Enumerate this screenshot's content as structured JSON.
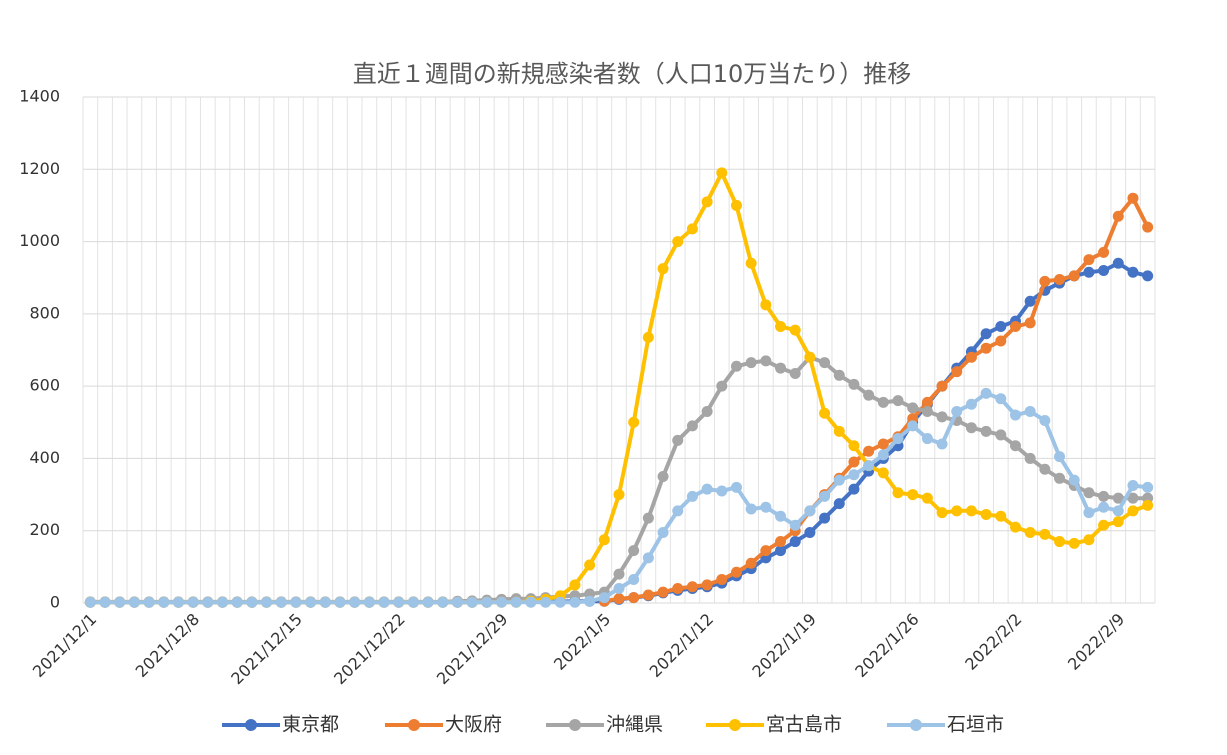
{
  "chart_data": {
    "type": "line",
    "title": "直近１週間の新規感染者数（人口10万当たり）推移",
    "categories": [
      "2021/12/1",
      null,
      null,
      null,
      null,
      null,
      null,
      "2021/12/8",
      null,
      null,
      null,
      null,
      null,
      null,
      "2021/12/15",
      null,
      null,
      null,
      null,
      null,
      null,
      "2021/12/22",
      null,
      null,
      null,
      null,
      null,
      null,
      "2021/12/29",
      null,
      null,
      null,
      null,
      null,
      null,
      "2022/1/5",
      null,
      null,
      null,
      null,
      null,
      null,
      "2022/1/12",
      null,
      null,
      null,
      null,
      null,
      null,
      "2022/1/19",
      null,
      null,
      null,
      null,
      null,
      null,
      "2022/1/26",
      null,
      null,
      null,
      null,
      null,
      null,
      "2022/2/2",
      null,
      null,
      null,
      null,
      null,
      null,
      "2022/2/9",
      null,
      null
    ],
    "series": [
      {
        "name": "東京都",
        "color": "#4472c4",
        "values": [
          2,
          2,
          2,
          2,
          2,
          2,
          2,
          2,
          2,
          2,
          2,
          2,
          2,
          2,
          2,
          2,
          2,
          2,
          2,
          2,
          2,
          2,
          2,
          2,
          2,
          2,
          2,
          2,
          3,
          3,
          4,
          4,
          4,
          5,
          5,
          5,
          10,
          15,
          20,
          28,
          35,
          40,
          45,
          55,
          75,
          95,
          125,
          145,
          170,
          195,
          235,
          275,
          315,
          365,
          400,
          435,
          500,
          550,
          600,
          650,
          695,
          745,
          765,
          780,
          835,
          865,
          885,
          905,
          915,
          920,
          940,
          915,
          905
        ]
      },
      {
        "name": "大阪府",
        "color": "#ed7d31",
        "values": [
          null,
          null,
          null,
          null,
          null,
          null,
          null,
          null,
          null,
          null,
          null,
          null,
          null,
          null,
          null,
          null,
          null,
          null,
          null,
          null,
          null,
          null,
          null,
          null,
          null,
          null,
          null,
          null,
          null,
          null,
          null,
          null,
          null,
          null,
          null,
          5,
          12,
          15,
          22,
          30,
          40,
          45,
          50,
          65,
          85,
          110,
          145,
          170,
          200,
          255,
          300,
          345,
          390,
          420,
          440,
          460,
          510,
          555,
          600,
          640,
          680,
          705,
          725,
          765,
          775,
          890,
          895,
          905,
          950,
          970,
          1070,
          1120,
          1040
        ]
      },
      {
        "name": "沖縄県",
        "color": "#a5a5a5",
        "values": [
          3,
          3,
          3,
          3,
          3,
          3,
          3,
          3,
          3,
          3,
          3,
          3,
          3,
          3,
          3,
          3,
          3,
          3,
          3,
          3,
          3,
          3,
          3,
          3,
          3,
          5,
          6,
          8,
          10,
          12,
          12,
          15,
          18,
          20,
          25,
          30,
          80,
          145,
          235,
          350,
          450,
          490,
          530,
          600,
          655,
          665,
          670,
          650,
          635,
          680,
          665,
          630,
          605,
          575,
          555,
          560,
          540,
          530,
          515,
          505,
          485,
          475,
          465,
          435,
          400,
          370,
          345,
          325,
          305,
          295,
          290,
          290,
          290
        ]
      },
      {
        "name": "宮古島市",
        "color": "#ffc000",
        "values": [
          2,
          2,
          2,
          2,
          2,
          2,
          2,
          2,
          2,
          2,
          2,
          2,
          2,
          2,
          2,
          2,
          2,
          2,
          2,
          2,
          2,
          2,
          2,
          2,
          2,
          2,
          2,
          2,
          2,
          2,
          5,
          10,
          20,
          50,
          105,
          175,
          300,
          500,
          735,
          925,
          1000,
          1035,
          1110,
          1190,
          1100,
          940,
          825,
          765,
          755,
          680,
          525,
          475,
          435,
          380,
          360,
          305,
          300,
          290,
          250,
          255,
          255,
          245,
          240,
          210,
          195,
          190,
          170,
          165,
          175,
          215,
          225,
          255,
          270
        ]
      },
      {
        "name": "石垣市",
        "color": "#9dc3e6",
        "values": [
          2,
          2,
          2,
          2,
          2,
          2,
          2,
          2,
          2,
          2,
          2,
          2,
          2,
          2,
          2,
          2,
          2,
          2,
          2,
          2,
          2,
          2,
          2,
          2,
          2,
          2,
          2,
          2,
          2,
          2,
          2,
          2,
          2,
          2,
          5,
          15,
          40,
          65,
          125,
          195,
          255,
          295,
          315,
          310,
          320,
          260,
          265,
          240,
          215,
          255,
          295,
          340,
          355,
          380,
          410,
          455,
          490,
          455,
          440,
          530,
          550,
          580,
          565,
          520,
          530,
          505,
          405,
          340,
          250,
          265,
          255,
          325,
          320
        ]
      }
    ],
    "ylim": [
      0,
      1400
    ],
    "yticks": [
      0,
      200,
      400,
      600,
      800,
      1000,
      1200,
      1400
    ],
    "grid": true,
    "legend": "bottom"
  }
}
